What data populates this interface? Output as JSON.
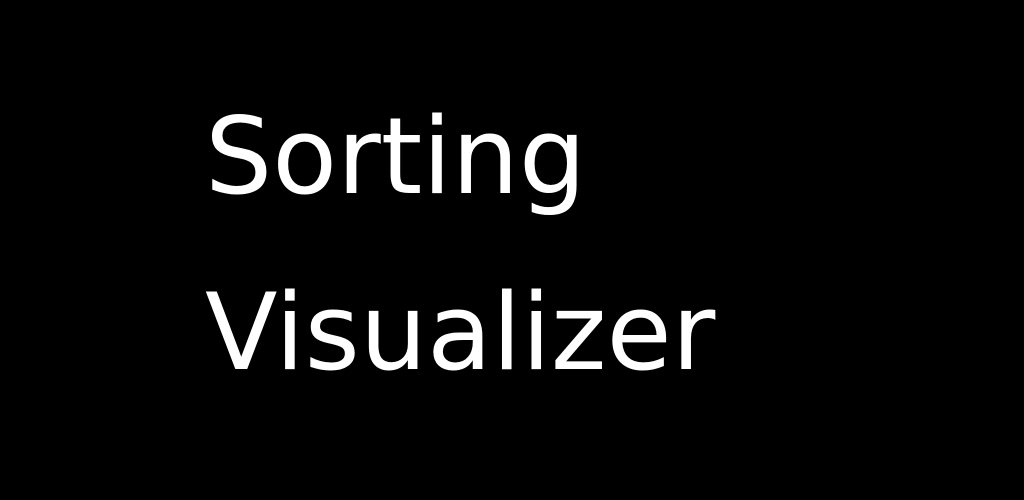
{
  "banner": {
    "background_color": "#000000",
    "text_color": "#ffffff",
    "title_lines": [
      "Sorting",
      "Visualizer"
    ]
  }
}
